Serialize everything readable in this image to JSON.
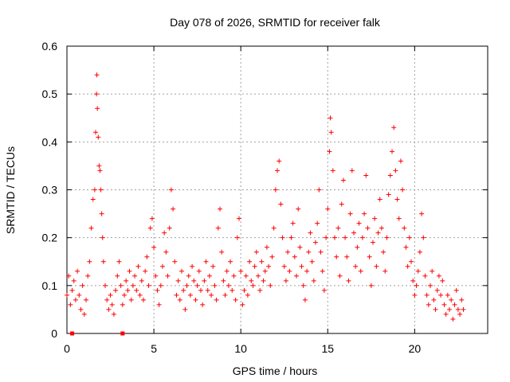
{
  "chart_data": {
    "type": "scatter",
    "title": "Day 078 of 2026, SRMTID for receiver falk",
    "xlabel": "GPS time / hours",
    "ylabel": "SRMTID / TECUs",
    "xlim": [
      0,
      24.2
    ],
    "ylim": [
      0,
      0.6
    ],
    "xticks": [
      0,
      5,
      10,
      15,
      20
    ],
    "xtick_labels": [
      "0",
      "5",
      "10",
      "15",
      "20"
    ],
    "yticks": [
      0,
      0.1,
      0.2,
      0.3,
      0.4,
      0.5,
      0.6
    ],
    "ytick_labels": [
      "0",
      "0.1",
      "0.2",
      "0.3",
      "0.4",
      "0.5",
      "0.6"
    ],
    "grid": true,
    "marker": "plus",
    "color": "#ff0000",
    "series": [
      {
        "name": "SRMTID",
        "points": [
          [
            0.0,
            0.08
          ],
          [
            0.1,
            0.12
          ],
          [
            0.2,
            0.06
          ],
          [
            0.3,
            0.09
          ],
          [
            0.4,
            0.11
          ],
          [
            0.5,
            0.07
          ],
          [
            0.6,
            0.13
          ],
          [
            0.7,
            0.08
          ],
          [
            0.8,
            0.05
          ],
          [
            0.9,
            0.1
          ],
          [
            1.0,
            0.04
          ],
          [
            1.1,
            0.07
          ],
          [
            1.2,
            0.12
          ],
          [
            1.3,
            0.15
          ],
          [
            1.4,
            0.22
          ],
          [
            1.5,
            0.28
          ],
          [
            1.6,
            0.3
          ],
          [
            1.65,
            0.42
          ],
          [
            1.7,
            0.5
          ],
          [
            1.72,
            0.54
          ],
          [
            1.75,
            0.47
          ],
          [
            1.8,
            0.41
          ],
          [
            1.85,
            0.35
          ],
          [
            1.9,
            0.34
          ],
          [
            1.95,
            0.3
          ],
          [
            2.0,
            0.25
          ],
          [
            2.05,
            0.2
          ],
          [
            2.1,
            0.15
          ],
          [
            2.2,
            0.1
          ],
          [
            2.3,
            0.07
          ],
          [
            2.4,
            0.05
          ],
          [
            2.5,
            0.08
          ],
          [
            2.6,
            0.06
          ],
          [
            2.7,
            0.04
          ],
          [
            2.8,
            0.09
          ],
          [
            2.9,
            0.12
          ],
          [
            3.0,
            0.15
          ],
          [
            3.1,
            0.1
          ],
          [
            3.2,
            0.06
          ],
          [
            3.3,
            0.08
          ],
          [
            3.4,
            0.11
          ],
          [
            3.5,
            0.09
          ],
          [
            3.6,
            0.13
          ],
          [
            3.7,
            0.07
          ],
          [
            3.8,
            0.1
          ],
          [
            3.9,
            0.12
          ],
          [
            4.0,
            0.09
          ],
          [
            4.1,
            0.14
          ],
          [
            4.2,
            0.08
          ],
          [
            4.3,
            0.11
          ],
          [
            4.4,
            0.07
          ],
          [
            4.5,
            0.13
          ],
          [
            4.6,
            0.16
          ],
          [
            4.7,
            0.1
          ],
          [
            4.8,
            0.22
          ],
          [
            4.9,
            0.24
          ],
          [
            5.0,
            0.18
          ],
          [
            5.1,
            0.12
          ],
          [
            5.2,
            0.09
          ],
          [
            5.3,
            0.06
          ],
          [
            5.4,
            0.1
          ],
          [
            5.5,
            0.14
          ],
          [
            5.6,
            0.21
          ],
          [
            5.7,
            0.17
          ],
          [
            5.8,
            0.12
          ],
          [
            5.9,
            0.22
          ],
          [
            6.0,
            0.3
          ],
          [
            6.1,
            0.26
          ],
          [
            6.2,
            0.15
          ],
          [
            6.3,
            0.08
          ],
          [
            6.4,
            0.11
          ],
          [
            6.5,
            0.07
          ],
          [
            6.6,
            0.13
          ],
          [
            6.7,
            0.09
          ],
          [
            6.8,
            0.05
          ],
          [
            6.9,
            0.1
          ],
          [
            7.0,
            0.12
          ],
          [
            7.1,
            0.08
          ],
          [
            7.2,
            0.14
          ],
          [
            7.3,
            0.11
          ],
          [
            7.4,
            0.07
          ],
          [
            7.5,
            0.1
          ],
          [
            7.6,
            0.13
          ],
          [
            7.7,
            0.09
          ],
          [
            7.8,
            0.06
          ],
          [
            7.9,
            0.11
          ],
          [
            8.0,
            0.15
          ],
          [
            8.1,
            0.09
          ],
          [
            8.2,
            0.12
          ],
          [
            8.3,
            0.08
          ],
          [
            8.4,
            0.14
          ],
          [
            8.5,
            0.1
          ],
          [
            8.6,
            0.07
          ],
          [
            8.7,
            0.22
          ],
          [
            8.8,
            0.26
          ],
          [
            8.9,
            0.17
          ],
          [
            9.0,
            0.11
          ],
          [
            9.1,
            0.08
          ],
          [
            9.2,
            0.13
          ],
          [
            9.3,
            0.1
          ],
          [
            9.4,
            0.15
          ],
          [
            9.5,
            0.09
          ],
          [
            9.6,
            0.12
          ],
          [
            9.7,
            0.07
          ],
          [
            9.8,
            0.2
          ],
          [
            9.9,
            0.24
          ],
          [
            10.0,
            0.13
          ],
          [
            10.1,
            0.06
          ],
          [
            10.2,
            0.09
          ],
          [
            10.3,
            0.12
          ],
          [
            10.4,
            0.08
          ],
          [
            10.5,
            0.15
          ],
          [
            10.6,
            0.11
          ],
          [
            10.7,
            0.1
          ],
          [
            10.8,
            0.14
          ],
          [
            10.9,
            0.17
          ],
          [
            11.0,
            0.12
          ],
          [
            11.1,
            0.09
          ],
          [
            11.2,
            0.15
          ],
          [
            11.3,
            0.11
          ],
          [
            11.4,
            0.13
          ],
          [
            11.5,
            0.18
          ],
          [
            11.6,
            0.14
          ],
          [
            11.7,
            0.1
          ],
          [
            11.8,
            0.16
          ],
          [
            11.9,
            0.22
          ],
          [
            12.0,
            0.3
          ],
          [
            12.1,
            0.34
          ],
          [
            12.2,
            0.36
          ],
          [
            12.3,
            0.27
          ],
          [
            12.4,
            0.2
          ],
          [
            12.5,
            0.14
          ],
          [
            12.6,
            0.11
          ],
          [
            12.7,
            0.17
          ],
          [
            12.8,
            0.13
          ],
          [
            12.9,
            0.2
          ],
          [
            13.0,
            0.23
          ],
          [
            13.1,
            0.16
          ],
          [
            13.2,
            0.12
          ],
          [
            13.3,
            0.26
          ],
          [
            13.4,
            0.18
          ],
          [
            13.5,
            0.14
          ],
          [
            13.6,
            0.1
          ],
          [
            13.7,
            0.07
          ],
          [
            13.8,
            0.13
          ],
          [
            13.9,
            0.17
          ],
          [
            14.0,
            0.21
          ],
          [
            14.1,
            0.15
          ],
          [
            14.2,
            0.11
          ],
          [
            14.3,
            0.19
          ],
          [
            14.4,
            0.23
          ],
          [
            14.5,
            0.3
          ],
          [
            14.6,
            0.17
          ],
          [
            14.7,
            0.13
          ],
          [
            14.8,
            0.09
          ],
          [
            14.9,
            0.2
          ],
          [
            15.0,
            0.26
          ],
          [
            15.1,
            0.38
          ],
          [
            15.15,
            0.45
          ],
          [
            15.2,
            0.42
          ],
          [
            15.3,
            0.34
          ],
          [
            15.4,
            0.2
          ],
          [
            15.5,
            0.16
          ],
          [
            15.6,
            0.22
          ],
          [
            15.7,
            0.12
          ],
          [
            15.8,
            0.27
          ],
          [
            15.9,
            0.32
          ],
          [
            16.0,
            0.2
          ],
          [
            16.1,
            0.16
          ],
          [
            16.2,
            0.11
          ],
          [
            16.3,
            0.25
          ],
          [
            16.4,
            0.34
          ],
          [
            16.5,
            0.21
          ],
          [
            16.6,
            0.14
          ],
          [
            16.7,
            0.18
          ],
          [
            16.8,
            0.23
          ],
          [
            16.9,
            0.13
          ],
          [
            17.0,
            0.2
          ],
          [
            17.1,
            0.25
          ],
          [
            17.2,
            0.33
          ],
          [
            17.3,
            0.22
          ],
          [
            17.4,
            0.16
          ],
          [
            17.5,
            0.1
          ],
          [
            17.6,
            0.19
          ],
          [
            17.7,
            0.24
          ],
          [
            17.8,
            0.14
          ],
          [
            17.9,
            0.21
          ],
          [
            18.0,
            0.28
          ],
          [
            18.1,
            0.22
          ],
          [
            18.2,
            0.17
          ],
          [
            18.3,
            0.13
          ],
          [
            18.4,
            0.2
          ],
          [
            18.5,
            0.29
          ],
          [
            18.6,
            0.33
          ],
          [
            18.7,
            0.38
          ],
          [
            18.8,
            0.43
          ],
          [
            18.9,
            0.34
          ],
          [
            19.0,
            0.28
          ],
          [
            19.1,
            0.24
          ],
          [
            19.2,
            0.36
          ],
          [
            19.3,
            0.3
          ],
          [
            19.4,
            0.22
          ],
          [
            19.5,
            0.18
          ],
          [
            19.6,
            0.14
          ],
          [
            19.7,
            0.2
          ],
          [
            19.8,
            0.15
          ],
          [
            19.9,
            0.11
          ],
          [
            20.0,
            0.08
          ],
          [
            20.1,
            0.1
          ],
          [
            20.2,
            0.13
          ],
          [
            20.3,
            0.17
          ],
          [
            20.4,
            0.25
          ],
          [
            20.5,
            0.2
          ],
          [
            20.6,
            0.12
          ],
          [
            20.7,
            0.08
          ],
          [
            20.8,
            0.06
          ],
          [
            20.9,
            0.1
          ],
          [
            21.0,
            0.13
          ],
          [
            21.1,
            0.07
          ],
          [
            21.2,
            0.05
          ],
          [
            21.3,
            0.09
          ],
          [
            21.4,
            0.12
          ],
          [
            21.5,
            0.08
          ],
          [
            21.6,
            0.11
          ],
          [
            21.7,
            0.06
          ],
          [
            21.8,
            0.04
          ],
          [
            21.9,
            0.08
          ],
          [
            22.0,
            0.05
          ],
          [
            22.1,
            0.07
          ],
          [
            22.2,
            0.03
          ],
          [
            22.3,
            0.06
          ],
          [
            22.4,
            0.09
          ],
          [
            22.5,
            0.05
          ],
          [
            22.6,
            0.04
          ],
          [
            22.7,
            0.07
          ],
          [
            22.8,
            0.05
          ]
        ]
      }
    ],
    "zero_markers": [
      0.3,
      3.2
    ]
  }
}
